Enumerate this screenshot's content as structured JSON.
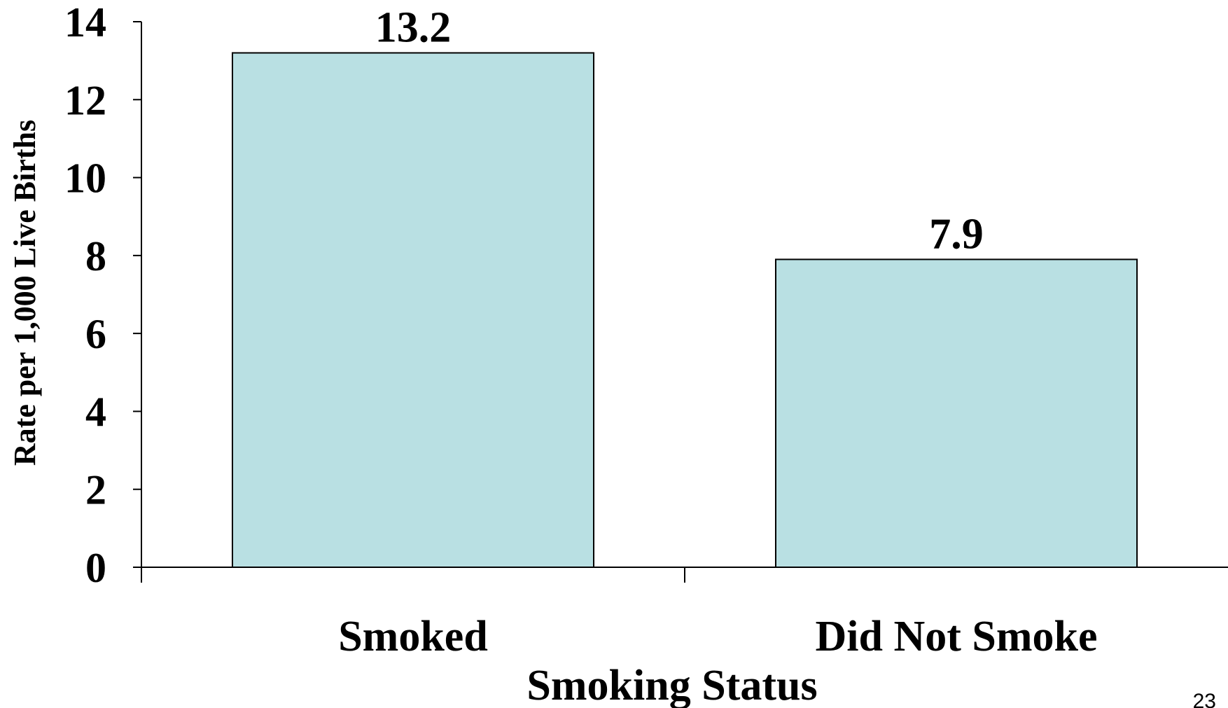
{
  "chart_data": {
    "type": "bar",
    "categories": [
      "Smoked",
      "Did Not Smoke"
    ],
    "values": [
      13.2,
      7.9
    ],
    "data_labels": [
      "13.2",
      "7.9"
    ],
    "title": "",
    "xlabel": "Smoking Status",
    "ylabel": "Rate per 1,000 Live Births",
    "ylim": [
      0,
      14
    ],
    "yticks": [
      0,
      2,
      4,
      6,
      8,
      10,
      12,
      14
    ],
    "bar_color": "#b9e0e3",
    "grid": false
  },
  "page_number": "23"
}
